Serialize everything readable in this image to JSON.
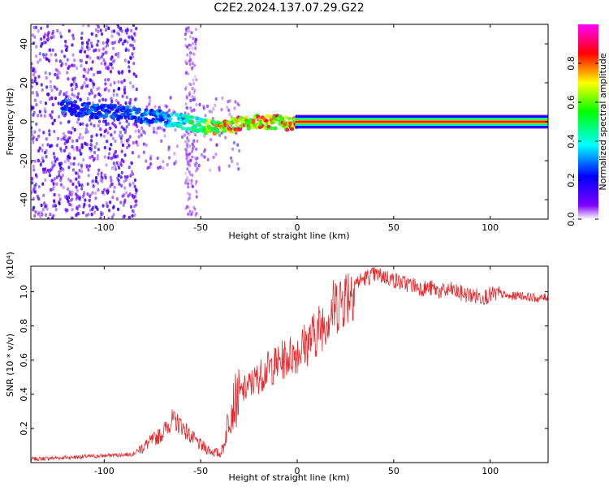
{
  "chart_data": [
    {
      "type": "heatmap",
      "title": "C2E2.2024.137.07.29.G22",
      "xlabel": "Height of straight line (km)",
      "ylabel": "Frequency (Hz)",
      "xlim": [
        -138,
        130
      ],
      "ylim": [
        -50,
        50
      ],
      "x_ticks": [
        -100,
        -50,
        0,
        50,
        100
      ],
      "y_ticks": [
        -40,
        -20,
        0,
        20,
        40
      ],
      "colorbar": {
        "label": "Normalized spectral amplitude",
        "range": [
          0,
          1
        ],
        "ticks": [
          0.0,
          0.2,
          0.4,
          0.6,
          0.8
        ],
        "colors": [
          "#ffffff",
          "#8000ff",
          "#0000ff",
          "#00ffff",
          "#00ff00",
          "#ffff00",
          "#ff0000",
          "#ff00ff"
        ]
      },
      "ridge": {
        "x": [
          -122,
          -110,
          -95,
          -80,
          -70,
          -60,
          -50,
          -45,
          -40,
          -30,
          -20,
          -10,
          -5,
          0,
          20,
          60,
          100,
          130
        ],
        "y": [
          8,
          6,
          5,
          3,
          2,
          0,
          -2,
          -3,
          -3,
          -1,
          0,
          0,
          -1,
          0,
          0,
          0,
          0,
          0
        ],
        "amplitude": [
          0.3,
          0.3,
          0.3,
          0.35,
          0.35,
          0.45,
          0.6,
          0.75,
          0.85,
          0.9,
          0.95,
          0.9,
          0.9,
          1.0,
          1.0,
          1.0,
          1.0,
          1.0
        ]
      }
    },
    {
      "type": "line",
      "xlabel": "Height of straight line (km)",
      "ylabel": "SNR (10 * v/v)",
      "y_multiplier": "(x10⁴)",
      "xlim": [
        -138,
        130
      ],
      "ylim": [
        0,
        1.15
      ],
      "x_ticks": [
        -100,
        -50,
        0,
        50,
        100
      ],
      "y_ticks": [
        0.2,
        0.4,
        0.6,
        0.8,
        1.0
      ],
      "series": [
        {
          "color": "#e8272a",
          "x": [
            -138,
            -120,
            -100,
            -85,
            -80,
            -75,
            -70,
            -65,
            -60,
            -55,
            -50,
            -45,
            -40,
            -38,
            -35,
            -30,
            -25,
            -20,
            -15,
            -10,
            -5,
            0,
            5,
            10,
            15,
            20,
            25,
            30,
            35,
            40,
            45,
            50,
            55,
            60,
            65,
            70,
            75,
            80,
            85,
            90,
            95,
            100,
            105,
            110,
            115,
            120,
            125,
            130
          ],
          "y": [
            0.02,
            0.03,
            0.04,
            0.05,
            0.09,
            0.13,
            0.17,
            0.25,
            0.22,
            0.15,
            0.1,
            0.07,
            0.05,
            0.1,
            0.3,
            0.4,
            0.45,
            0.5,
            0.55,
            0.58,
            0.62,
            0.65,
            0.7,
            0.76,
            0.85,
            0.92,
            0.98,
            1.05,
            1.08,
            1.1,
            1.09,
            1.07,
            1.05,
            1.04,
            1.02,
            1.02,
            1.0,
            1.01,
            0.99,
            0.98,
            0.97,
            0.98,
            0.99,
            0.97,
            0.98,
            0.97,
            0.96,
            0.97
          ]
        }
      ]
    }
  ]
}
